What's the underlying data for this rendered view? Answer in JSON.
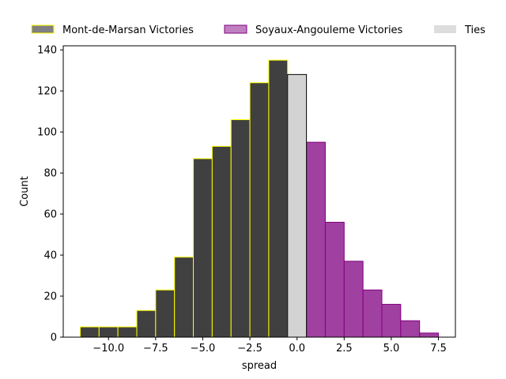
{
  "chart_data": {
    "type": "bar",
    "title": "",
    "xlabel": "spread",
    "ylabel": "Count",
    "xlim": [
      -12.4,
      8.4
    ],
    "ylim": [
      0,
      142
    ],
    "xticks": [
      -10.0,
      -7.5,
      -5.0,
      -2.5,
      0.0,
      2.5,
      5.0,
      7.5
    ],
    "xtick_labels": [
      "−10.0",
      "−7.5",
      "−5.0",
      "−2.5",
      "0.0",
      "2.5",
      "5.0",
      "7.5"
    ],
    "yticks": [
      0,
      20,
      40,
      60,
      80,
      100,
      120,
      140
    ],
    "ytick_labels": [
      "0",
      "20",
      "40",
      "60",
      "80",
      "100",
      "120",
      "140"
    ],
    "bin_width": 1,
    "legend_position": "top (above plot, horizontal)",
    "grid": false,
    "series": [
      {
        "name": "Mont-de-Marsan Victories",
        "fill": "#404040",
        "edge": "#ffff00",
        "legend_fill": "#808080",
        "bins": [
          {
            "x": -11,
            "value": 5
          },
          {
            "x": -10,
            "value": 5
          },
          {
            "x": -9,
            "value": 5
          },
          {
            "x": -8,
            "value": 13
          },
          {
            "x": -7,
            "value": 23
          },
          {
            "x": -6,
            "value": 39
          },
          {
            "x": -5,
            "value": 87
          },
          {
            "x": -4,
            "value": 93
          },
          {
            "x": -3,
            "value": 106
          },
          {
            "x": -2,
            "value": 124
          },
          {
            "x": -1,
            "value": 135
          }
        ]
      },
      {
        "name": "Soyaux-Angouleme Victories",
        "fill": "#a040a0",
        "edge": "#800080",
        "legend_fill": "#c080c0",
        "bins": [
          {
            "x": 1,
            "value": 95
          },
          {
            "x": 2,
            "value": 56
          },
          {
            "x": 3,
            "value": 37
          },
          {
            "x": 4,
            "value": 23
          },
          {
            "x": 5,
            "value": 16
          },
          {
            "x": 6,
            "value": 8
          },
          {
            "x": 7,
            "value": 2
          }
        ]
      },
      {
        "name": "Ties",
        "fill": "#d3d3d3",
        "edge": "#000000",
        "legend_fill": "#dddddd",
        "bins": [
          {
            "x": 0,
            "value": 128
          }
        ]
      }
    ]
  }
}
